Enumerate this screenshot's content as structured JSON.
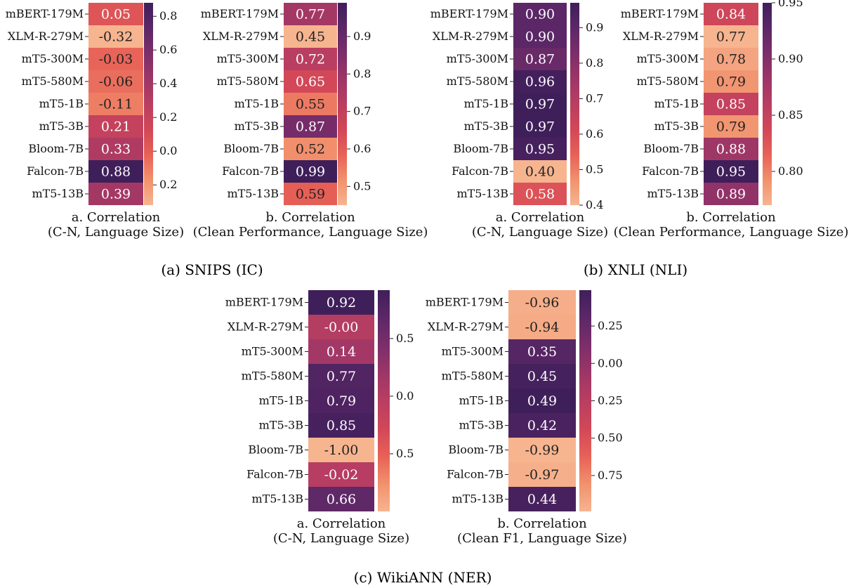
{
  "models": [
    "mBERT-179M",
    "XLM-R-279M",
    "mT5-300M",
    "mT5-580M",
    "mT5-1B",
    "mT5-3B",
    "Bloom-7B",
    "Falcon-7B",
    "mT5-13B"
  ],
  "colormap": [
    "#f6b48f",
    "#f1916d",
    "#e76157",
    "#d14758",
    "#b93e61",
    "#9c3667",
    "#7c2e6a",
    "#5c2767",
    "#3f1f5a"
  ],
  "text_colors": {
    "light": "#ffffff",
    "dark": "#222222"
  },
  "captions": {
    "a": "(a) SNIPS (IC)",
    "b": "(b) XNLI (NLI)",
    "c": "(c) WikiANN (NER)"
  },
  "chart_data": [
    {
      "type": "heatmap",
      "group": "a",
      "xlabel_line1": "a. Correlation",
      "xlabel_line2": "(C-N, Language Size)",
      "values": [
        "0.05",
        "-0.32",
        "-0.03",
        "-0.06",
        "-0.11",
        "0.21",
        "0.33",
        "0.88",
        "0.39"
      ],
      "colorbar_range": [
        -0.32,
        0.88
      ],
      "colorbar_ticks": [
        {
          "label": "0.8",
          "value": 0.8
        },
        {
          "label": "0.6",
          "value": 0.6
        },
        {
          "label": "0.4",
          "value": 0.4
        },
        {
          "label": "0.2",
          "value": 0.2
        },
        {
          "label": "0.0",
          "value": 0.0
        },
        {
          "label": "0.2",
          "value": -0.2
        }
      ]
    },
    {
      "type": "heatmap",
      "group": "a",
      "xlabel_line1": "b. Correlation",
      "xlabel_line2": "(Clean Performance, Language Size)",
      "values": [
        "0.77",
        "0.45",
        "0.72",
        "0.65",
        "0.55",
        "0.87",
        "0.52",
        "0.99",
        "0.59"
      ],
      "colorbar_range": [
        0.45,
        0.99
      ],
      "colorbar_ticks": [
        {
          "label": "0.9",
          "value": 0.9
        },
        {
          "label": "0.8",
          "value": 0.8
        },
        {
          "label": "0.7",
          "value": 0.7
        },
        {
          "label": "0.6",
          "value": 0.6
        },
        {
          "label": "0.5",
          "value": 0.5
        }
      ]
    },
    {
      "type": "heatmap",
      "group": "b",
      "xlabel_line1": "a. Correlation",
      "xlabel_line2": "(C-N, Language Size)",
      "values": [
        "0.90",
        "0.90",
        "0.87",
        "0.96",
        "0.97",
        "0.97",
        "0.95",
        "0.40",
        "0.58"
      ],
      "colorbar_range": [
        0.4,
        0.97
      ],
      "colorbar_ticks": [
        {
          "label": "0.9",
          "value": 0.9
        },
        {
          "label": "0.8",
          "value": 0.8
        },
        {
          "label": "0.7",
          "value": 0.7
        },
        {
          "label": "0.6",
          "value": 0.6
        },
        {
          "label": "0.5",
          "value": 0.5
        },
        {
          "label": "0.4",
          "value": 0.4
        }
      ]
    },
    {
      "type": "heatmap",
      "group": "b",
      "xlabel_line1": "b. Correlation",
      "xlabel_line2": "(Clean Performance, Language Size)",
      "values": [
        "0.84",
        "0.77",
        "0.78",
        "0.79",
        "0.85",
        "0.79",
        "0.88",
        "0.95",
        "0.89"
      ],
      "colorbar_range": [
        0.77,
        0.95
      ],
      "colorbar_ticks": [
        {
          "label": "0.95",
          "value": 0.95
        },
        {
          "label": "0.90",
          "value": 0.9
        },
        {
          "label": "0.85",
          "value": 0.85
        },
        {
          "label": "0.80",
          "value": 0.8
        }
      ]
    },
    {
      "type": "heatmap",
      "group": "c",
      "xlabel_line1": "a. Correlation",
      "xlabel_line2": "(C-N, Language Size)",
      "values": [
        "0.92",
        "-0.00",
        "0.14",
        "0.77",
        "0.79",
        "0.85",
        "-1.00",
        "-0.02",
        "0.66"
      ],
      "colorbar_range": [
        -1.0,
        0.92
      ],
      "colorbar_ticks": [
        {
          "label": "0.5",
          "value": 0.5
        },
        {
          "label": "0.0",
          "value": 0.0
        },
        {
          "label": "0.5",
          "value": -0.5
        }
      ]
    },
    {
      "type": "heatmap",
      "group": "c",
      "xlabel_line1": "b. Correlation",
      "xlabel_line2": "(Clean F1, Language Size)",
      "values": [
        "-0.96",
        "-0.94",
        "0.35",
        "0.45",
        "0.49",
        "0.42",
        "-0.99",
        "-0.97",
        "0.44"
      ],
      "colorbar_range": [
        -0.99,
        0.49
      ],
      "colorbar_ticks": [
        {
          "label": "0.25",
          "value": 0.25
        },
        {
          "label": "0.00",
          "value": 0.0
        },
        {
          "label": "0.25",
          "value": -0.25
        },
        {
          "label": "0.50",
          "value": -0.5
        },
        {
          "label": "0.75",
          "value": -0.75
        }
      ]
    }
  ]
}
